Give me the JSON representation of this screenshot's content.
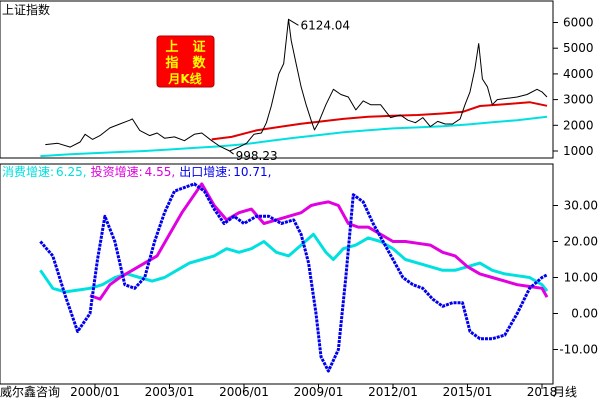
{
  "chart_data": [
    {
      "type": "line",
      "title": "上证指数",
      "badge": [
        "上",
        "证",
        "指",
        "数",
        "月K线"
      ],
      "ylim": [
        500,
        6700
      ],
      "yticks": [
        "1000",
        "2000",
        "3000",
        "4000",
        "5000",
        "6000"
      ],
      "annotations": [
        {
          "label": "6124.04",
          "x": 2007.79,
          "y": 6124.04
        },
        {
          "label": "998.23",
          "x": 2005.42,
          "y": 998.23
        }
      ],
      "series": [
        {
          "color": "#000000",
          "x": [
            1998.0,
            1998.5,
            1999.0,
            1999.4,
            1999.6,
            1999.9,
            2000.2,
            2000.6,
            2001.0,
            2001.4,
            2001.5,
            2001.8,
            2002.2,
            2002.5,
            2002.8,
            2003.2,
            2003.6,
            2004.0,
            2004.3,
            2004.7,
            2005.0,
            2005.42,
            2005.8,
            2006.1,
            2006.4,
            2006.7,
            2006.9,
            2007.1,
            2007.4,
            2007.6,
            2007.79,
            2007.9,
            2008.1,
            2008.3,
            2008.5,
            2008.7,
            2008.84,
            2009.0,
            2009.3,
            2009.6,
            2009.9,
            2010.2,
            2010.5,
            2010.8,
            2011.1,
            2011.5,
            2011.9,
            2012.3,
            2012.6,
            2012.9,
            2013.2,
            2013.5,
            2013.8,
            2014.1,
            2014.4,
            2014.7,
            2014.9,
            2015.1,
            2015.3,
            2015.45,
            2015.6,
            2015.8,
            2016.0,
            2016.2,
            2016.6,
            2017.0,
            2017.4,
            2017.8,
            2018.0,
            2018.2
          ],
          "y": [
            1250,
            1300,
            1150,
            1350,
            1650,
            1450,
            1600,
            1900,
            2050,
            2200,
            2250,
            1800,
            1600,
            1700,
            1500,
            1550,
            1400,
            1650,
            1700,
            1400,
            1200,
            998.23,
            1150,
            1300,
            1650,
            1700,
            2100,
            2750,
            4000,
            4400,
            6124.04,
            5300,
            4400,
            3500,
            2800,
            2200,
            1820,
            2100,
            2800,
            3400,
            3200,
            3100,
            2600,
            2950,
            2800,
            2800,
            2300,
            2400,
            2200,
            2100,
            2300,
            1950,
            2150,
            2050,
            2050,
            2250,
            2800,
            3300,
            4200,
            5178,
            3800,
            3500,
            2800,
            3000,
            3050,
            3100,
            3200,
            3400,
            3300,
            3100
          ]
        },
        {
          "color": "#e00000",
          "x": [
            2004.7,
            2005.5,
            2006.5,
            2007.5,
            2008.3,
            2009.0,
            2010.0,
            2011.0,
            2012.0,
            2013.0,
            2014.0,
            2014.8,
            2015.5,
            2016.5,
            2017.5,
            2018.2
          ],
          "y": [
            1450,
            1550,
            1800,
            1950,
            2060,
            2140,
            2250,
            2330,
            2370,
            2400,
            2460,
            2520,
            2750,
            2820,
            2900,
            2760
          ]
        },
        {
          "color": "#00e0e0",
          "x": [
            1997.8,
            1999.0,
            2000.0,
            2001.0,
            2002.0,
            2003.0,
            2004.0,
            2005.0,
            2006.0,
            2007.0,
            2008.0,
            2009.0,
            2010.0,
            2011.0,
            2012.0,
            2013.0,
            2014.0,
            2015.0,
            2016.0,
            2017.0,
            2018.2
          ],
          "y": [
            800,
            870,
            920,
            960,
            1000,
            1060,
            1120,
            1180,
            1260,
            1390,
            1510,
            1620,
            1730,
            1810,
            1880,
            1920,
            1960,
            2030,
            2120,
            2200,
            2330
          ]
        }
      ]
    },
    {
      "type": "line",
      "legend": [
        {
          "label": "消费增速:",
          "value": "6.25,",
          "color": "#00e0e0"
        },
        {
          "label": "投资增速:",
          "value": "4.55,",
          "color": "#e000e0"
        },
        {
          "label": "出口增速:",
          "value": "10.71,",
          "color": "#0000ee"
        }
      ],
      "ylim": [
        -18,
        40
      ],
      "yticks": [
        "-10.00",
        "0.00",
        "10.00",
        "20.00",
        "30.00"
      ],
      "xticks": [
        "2000/01",
        "2003/01",
        "2006/01",
        "2009/01",
        "2012/01",
        "2015/01",
        "2018"
      ],
      "xtick_values": [
        2000.0,
        2003.0,
        2006.0,
        2009.0,
        2012.0,
        2015.0,
        2018.0
      ],
      "footer_left": "威尔鑫咨询",
      "footer_right": "月线",
      "series": [
        {
          "name": "消费增速",
          "color": "#00e0e0",
          "x": [
            1997.8,
            1998.3,
            1998.8,
            1999.3,
            1999.8,
            2000.3,
            2000.8,
            2001.3,
            2001.8,
            2002.3,
            2002.8,
            2003.3,
            2003.8,
            2004.3,
            2004.8,
            2005.3,
            2005.8,
            2006.3,
            2006.8,
            2007.3,
            2007.8,
            2008.3,
            2008.8,
            2009.3,
            2009.6,
            2010.0,
            2010.5,
            2011.0,
            2011.5,
            2012.0,
            2012.5,
            2013.0,
            2013.5,
            2014.0,
            2014.5,
            2015.0,
            2015.5,
            2016.0,
            2016.5,
            2017.0,
            2017.5,
            2018.0,
            2018.2
          ],
          "y": [
            12.0,
            7.0,
            6.0,
            6.5,
            7.0,
            8.0,
            10.0,
            11.0,
            10.0,
            9.0,
            10.0,
            12.0,
            14.0,
            15.0,
            16.0,
            18.0,
            17.0,
            18.0,
            20.0,
            17.0,
            16.0,
            19.0,
            22.0,
            17.0,
            15.0,
            18.0,
            19.0,
            21.0,
            20.0,
            18.0,
            15.0,
            14.0,
            13.0,
            12.0,
            12.0,
            13.0,
            14.0,
            12.0,
            11.0,
            10.5,
            10.0,
            8.0,
            6.25
          ]
        },
        {
          "name": "投资增速",
          "color": "#e000e0",
          "x": [
            1999.8,
            2000.2,
            2000.6,
            2001.0,
            2001.5,
            2002.0,
            2002.5,
            2003.0,
            2003.5,
            2004.0,
            2004.3,
            2004.8,
            2005.3,
            2005.8,
            2006.3,
            2006.8,
            2007.3,
            2007.8,
            2008.3,
            2008.7,
            2009.0,
            2009.4,
            2009.8,
            2010.2,
            2010.6,
            2011.0,
            2011.5,
            2012.0,
            2012.5,
            2013.0,
            2013.5,
            2014.0,
            2014.5,
            2015.0,
            2015.5,
            2016.0,
            2016.5,
            2017.0,
            2017.5,
            2018.0,
            2018.2
          ],
          "y": [
            5.0,
            4.0,
            8.0,
            10.0,
            12.0,
            14.0,
            16.0,
            22.0,
            28.0,
            33.0,
            36.0,
            30.0,
            26.0,
            28.0,
            29.0,
            25.0,
            26.0,
            27.0,
            28.0,
            30.0,
            30.5,
            31.0,
            30.0,
            25.0,
            24.0,
            24.0,
            22.0,
            20.0,
            20.0,
            19.5,
            19.0,
            17.0,
            16.0,
            13.0,
            11.0,
            10.0,
            9.0,
            8.0,
            7.5,
            7.0,
            4.55
          ]
        },
        {
          "name": "出口增速",
          "color": "#0000ee",
          "x": [
            1997.8,
            1998.3,
            1998.8,
            1999.3,
            1999.8,
            2000.1,
            2000.4,
            2000.8,
            2001.2,
            2001.6,
            2002.0,
            2002.4,
            2002.8,
            2003.2,
            2003.6,
            2004.0,
            2004.4,
            2004.8,
            2005.2,
            2005.6,
            2006.0,
            2006.5,
            2007.0,
            2007.5,
            2008.0,
            2008.3,
            2008.6,
            2008.9,
            2009.1,
            2009.4,
            2009.8,
            2010.1,
            2010.4,
            2010.8,
            2011.2,
            2011.6,
            2012.0,
            2012.4,
            2012.8,
            2013.2,
            2013.6,
            2014.0,
            2014.4,
            2014.8,
            2015.1,
            2015.5,
            2016.0,
            2016.5,
            2017.0,
            2017.5,
            2018.0,
            2018.2
          ],
          "y": [
            20.0,
            16.0,
            5.0,
            -5.0,
            0.0,
            15.0,
            27.0,
            20.0,
            8.0,
            7.0,
            10.0,
            20.0,
            28.0,
            34.0,
            35.0,
            36.0,
            34.0,
            29.0,
            25.0,
            27.0,
            25.0,
            27.0,
            27.0,
            25.0,
            26.0,
            22.0,
            14.0,
            0.0,
            -12.0,
            -16.0,
            -10.0,
            10.0,
            33.0,
            31.0,
            25.0,
            20.0,
            15.0,
            10.0,
            8.0,
            7.0,
            4.0,
            2.0,
            3.0,
            3.0,
            -5.0,
            -7.0,
            -7.0,
            -6.0,
            0.0,
            7.0,
            10.0,
            10.71
          ]
        }
      ]
    }
  ]
}
